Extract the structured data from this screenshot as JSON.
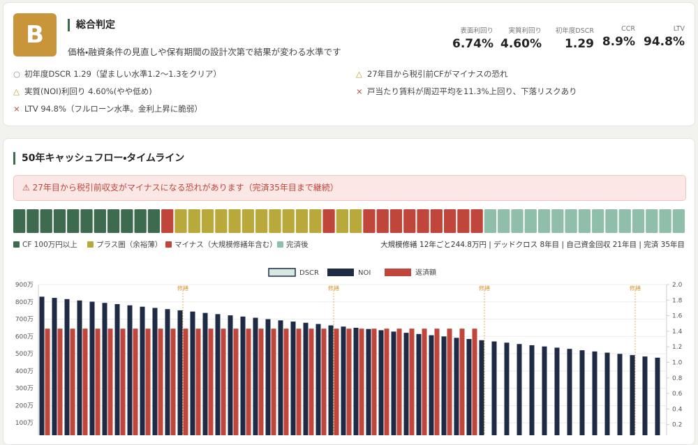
{
  "header": {
    "grade": "B",
    "title": "総合判定",
    "subtitle": "価格・融資条件の見直しや保有期間の設計次第で結果が変わる水準です"
  },
  "metrics": [
    {
      "label": "表面利回り",
      "value": "6.74%"
    },
    {
      "label": "実質利回り",
      "value": "4.60%"
    },
    {
      "label": "初年度DSCR",
      "value": "1.29"
    },
    {
      "label": "CCR",
      "value": "8.9%"
    },
    {
      "label": "LTV",
      "value": "94.8%"
    }
  ],
  "checks": [
    {
      "mark": "○",
      "text": "初年度DSCR 1.29（望ましい水準1.2〜1.3をクリア）",
      "color": "#888888"
    },
    {
      "mark": "△",
      "text": "27年目から税引前CFがマイナスの恐れ",
      "color": "#b9a03a"
    },
    {
      "mark": "△",
      "text": "実質(NOI)利回り 4.60%(やや低め)",
      "color": "#b9a03a"
    },
    {
      "mark": "×",
      "text": "戸当たり賃料が周辺平均を11.3%上回り、下落リスクあり",
      "color": "#c0453a"
    },
    {
      "mark": "×",
      "text": "LTV 94.8%（フルローン水準。金利上昇に脆弱）",
      "color": "#c0453a"
    }
  ],
  "timeline": {
    "title": "50年キャッシュフロー・タイムライン",
    "alert": "⚠ 27年目から税引前収支がマイナスになる恐れがあります（完済35年目まで継続）",
    "legend": [
      {
        "label": "CF 100万円以上",
        "color": "#3d6b50"
      },
      {
        "label": "プラス圏（余裕薄）",
        "color": "#b9a93a"
      },
      {
        "label": "マイナス（大規模修繕年含む）",
        "color": "#c0453a"
      },
      {
        "label": "完済後",
        "color": "#8fbfab"
      }
    ],
    "years": [
      0,
      0,
      0,
      0,
      0,
      0,
      0,
      0,
      0,
      0,
      0,
      2,
      1,
      1,
      1,
      1,
      1,
      1,
      1,
      1,
      1,
      1,
      1,
      2,
      1,
      1,
      2,
      2,
      2,
      2,
      2,
      2,
      2,
      2,
      2,
      3,
      3,
      3,
      3,
      3,
      3,
      3,
      3,
      3,
      3,
      3,
      3,
      3,
      3,
      3
    ],
    "summary": "大規模修繕 12年ごと244.8万円 | デッドクロス 8年目 | 自己資金回収 21年目 | 完済 35年目"
  },
  "chart_data": {
    "type": "bar",
    "x": [
      1,
      2,
      3,
      4,
      5,
      6,
      7,
      8,
      9,
      10,
      11,
      12,
      13,
      14,
      15,
      16,
      17,
      18,
      19,
      20,
      21,
      22,
      23,
      24,
      25,
      26,
      27,
      28,
      29,
      30,
      31,
      32,
      33,
      34,
      35,
      36,
      37,
      38,
      39,
      40,
      41,
      42,
      43,
      44,
      45,
      46,
      47,
      48,
      49,
      50
    ],
    "xlim": [
      0.5,
      50.5
    ],
    "legend": [
      {
        "name": "DSCR",
        "color": "#d6e9e1"
      }
    ],
    "series": [
      {
        "name": "NOI",
        "color": "#1f2a44",
        "values": [
          830,
          823,
          816,
          808,
          801,
          794,
          787,
          780,
          772,
          765,
          758,
          751,
          744,
          736,
          729,
          722,
          715,
          708,
          700,
          693,
          686,
          679,
          672,
          664,
          657,
          650,
          643,
          636,
          628,
          621,
          614,
          607,
          600,
          592,
          585,
          578,
          571,
          564,
          556,
          549,
          542,
          535,
          528,
          520,
          513,
          506,
          499,
          492,
          484,
          477
        ]
      },
      {
        "name": "返済額",
        "color": "#c0453a",
        "values": [
          645,
          645,
          645,
          645,
          645,
          645,
          645,
          645,
          645,
          645,
          645,
          645,
          645,
          645,
          645,
          645,
          645,
          645,
          645,
          645,
          645,
          645,
          645,
          645,
          645,
          645,
          645,
          645,
          645,
          645,
          645,
          645,
          645,
          645,
          645,
          null,
          null,
          null,
          null,
          null,
          null,
          null,
          null,
          null,
          null,
          null,
          null,
          null,
          null,
          null
        ]
      }
    ],
    "ylim": [
      0,
      900
    ],
    "yticks": [
      {
        "value": 100,
        "label": "100万"
      },
      {
        "value": 200,
        "label": "200万"
      },
      {
        "value": 300,
        "label": "300万"
      },
      {
        "value": 400,
        "label": "400万"
      },
      {
        "value": 500,
        "label": "500万"
      },
      {
        "value": 600,
        "label": "600万"
      },
      {
        "value": 700,
        "label": "700万"
      },
      {
        "value": 800,
        "label": "800万"
      },
      {
        "value": 900,
        "label": "900万"
      }
    ],
    "y2lim": [
      0,
      2.0
    ],
    "y2ticks": [
      {
        "value": 0.2,
        "label": "0.2"
      },
      {
        "value": 0.4,
        "label": "0.4"
      },
      {
        "value": 0.6,
        "label": "0.6"
      },
      {
        "value": 0.8,
        "label": "0.8"
      },
      {
        "value": 1.0,
        "label": "1.0"
      },
      {
        "value": 1.2,
        "label": "1.2"
      },
      {
        "value": 1.4,
        "label": "1.4"
      },
      {
        "value": 1.6,
        "label": "1.6"
      },
      {
        "value": 1.8,
        "label": "1.8"
      },
      {
        "value": 2.0,
        "label": "2.0"
      }
    ],
    "grid": true,
    "annotations": [
      {
        "x": 12,
        "label": "修繕"
      },
      {
        "x": 24,
        "label": "修繕"
      },
      {
        "x": 36,
        "label": "修繕"
      },
      {
        "x": 48,
        "label": "修繕"
      }
    ]
  }
}
